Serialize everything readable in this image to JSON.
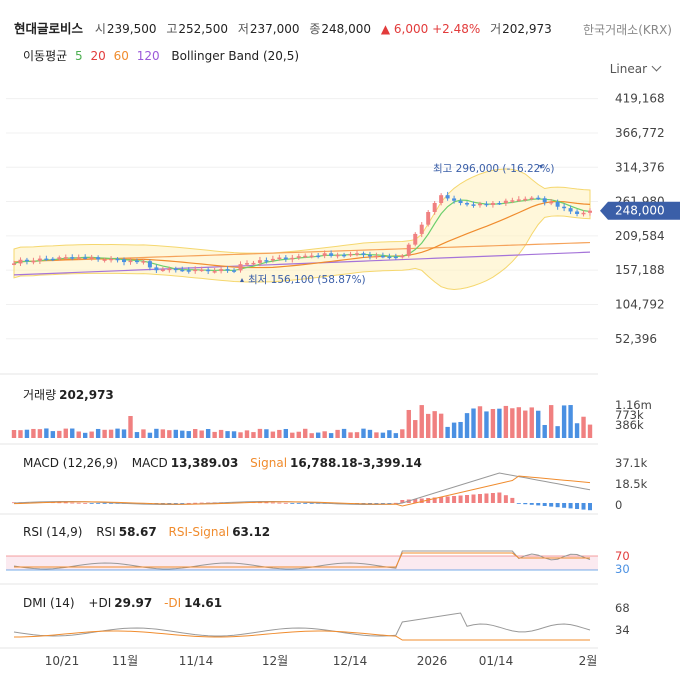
{
  "header": {
    "name": "현대글로비스",
    "open_label": "시",
    "open": "239,500",
    "high_label": "고",
    "high": "252,500",
    "low_label": "저",
    "low": "237,000",
    "close_label": "종",
    "close": "248,000",
    "change": "6,000",
    "change_pct": "+2.48%",
    "volume_label": "거",
    "volume": "202,973",
    "exchange": "한국거래소(KRX)"
  },
  "indicators": {
    "ma_label": "이동평균",
    "ma5": "5",
    "ma20": "20",
    "ma60": "60",
    "ma120": "120",
    "bb_label": "Bollinger Band (20,5)"
  },
  "scale_mode": "Linear",
  "colors": {
    "up": "#f08080",
    "down": "#4a90e2",
    "ma5": "#6ccf6c",
    "ma20": "#f08c2e",
    "ma60": "#f5a35b",
    "ma120": "#a574d9",
    "bb": "#fff2c2",
    "badge": "#3b5fa8"
  },
  "panels": {
    "volume": {
      "label": "거래량",
      "value": "202,973",
      "ticks": [
        "1.16m",
        "773k",
        "386k"
      ]
    },
    "macd": {
      "label": "MACD (12,26,9)",
      "macd_label": "MACD",
      "macd_value": "13,389.03",
      "signal_label": "Signal",
      "signal_value": "16,788.18",
      "hist_value": "-3,399.14",
      "ticks": [
        "37.1k",
        "18.5k",
        "0"
      ]
    },
    "rsi": {
      "label": "RSI (14,9)",
      "rsi_label": "RSI",
      "rsi_value": "58.67",
      "signal_label": "RSI-Signal",
      "signal_value": "63.12",
      "ticks": [
        "70",
        "30"
      ]
    },
    "dmi": {
      "label": "DMI (14)",
      "pdi_label": "+DI",
      "pdi_value": "29.97",
      "mdi_label": "-DI",
      "mdi_value": "14.61",
      "ticks": [
        "68",
        "34"
      ]
    }
  },
  "chart_data": {
    "type": "candlestick",
    "y_ticks": [
      "419,168",
      "366,772",
      "314,376",
      "261,980",
      "209,584",
      "157,188",
      "104,792",
      "52,396"
    ],
    "ylim": [
      20000,
      440000
    ],
    "x_labels": [
      "10/21",
      "11월",
      "11/14",
      "12월",
      "12/14",
      "2026",
      "01/14",
      "2월"
    ],
    "last_price": "248,000",
    "high_annotation": "최고 296,000 (-16.22%)",
    "low_annotation": "최저 156,100 (58.87%)",
    "start_price": 170000,
    "high_price": 296000,
    "low_price": 156100
  }
}
